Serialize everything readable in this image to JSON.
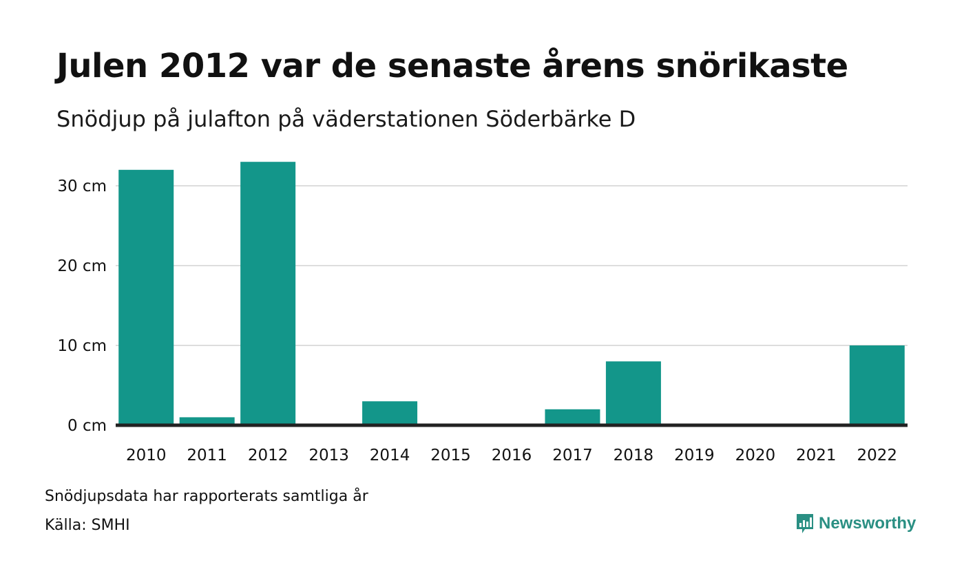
{
  "header": {
    "title": "Julen 2012 var de senaste årens snörikaste",
    "subtitle": "Snödjup på julafton på väderstationen Söderbärke D"
  },
  "footer": {
    "note": "Snödjupsdata har rapporterats samtliga år",
    "source": "Källa: SMHI",
    "brand": "Newsworthy",
    "brand_icon": "bar-chart-logo-icon"
  },
  "colors": {
    "bar": "#13968a",
    "grid": "#dddddd",
    "baseline": "#222222",
    "brand": "#2a8f83"
  },
  "chart_data": {
    "type": "bar",
    "categories": [
      "2010",
      "2011",
      "2012",
      "2013",
      "2014",
      "2015",
      "2016",
      "2017",
      "2018",
      "2019",
      "2020",
      "2021",
      "2022"
    ],
    "values": [
      32,
      1,
      33,
      0,
      3,
      0,
      0,
      2,
      8,
      0,
      0,
      0,
      10
    ],
    "unit": "cm",
    "yticks": [
      0,
      10,
      20,
      30
    ],
    "ytick_labels": [
      "0 cm",
      "10 cm",
      "20 cm",
      "30 cm"
    ],
    "ylim": [
      0,
      33
    ],
    "grid": true,
    "legend": "none",
    "title": "Julen 2012 var de senaste årens snörikaste",
    "xlabel": "",
    "ylabel": ""
  }
}
